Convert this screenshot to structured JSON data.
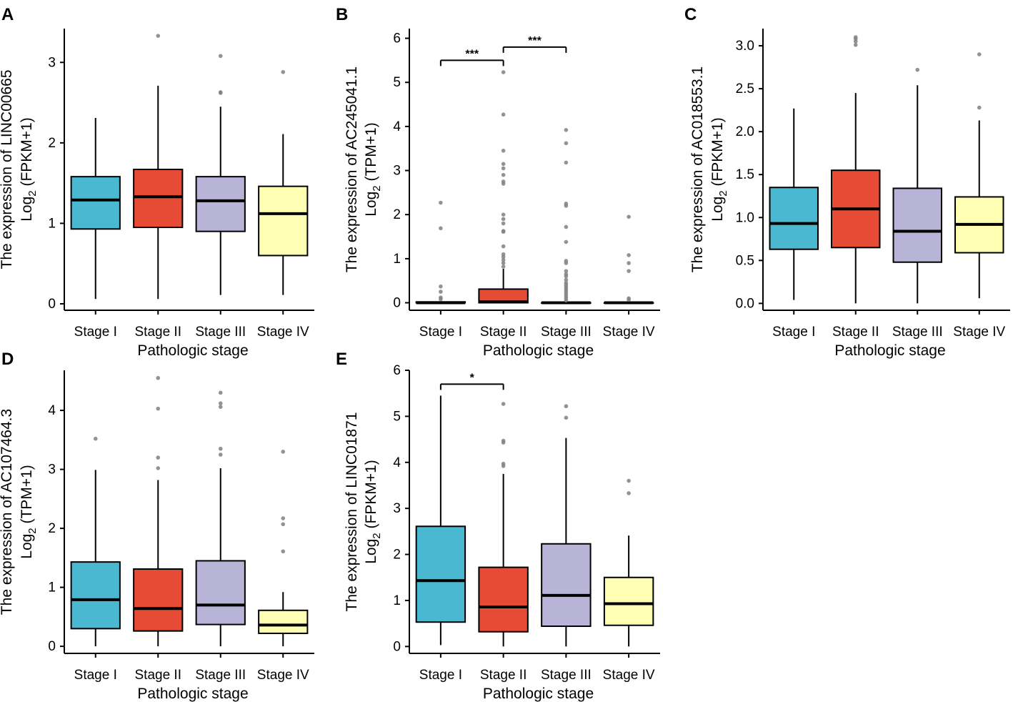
{
  "stage_colors": {
    "Stage I": "#4ab8d1",
    "Stage II": "#e64b35",
    "Stage III": "#b8b4d8",
    "Stage IV": "#ffffb3"
  },
  "outlier_color": "#808080",
  "chart_data": [
    {
      "panel": "A",
      "type": "box",
      "title": "",
      "ylabel_main": "The expression of LINC00665",
      "ylabel_sub": {
        "prefix": "Log",
        "subscript": "2",
        "suffix": " (FPKM+1)"
      },
      "xlabel": "Pathologic stage",
      "categories": [
        "Stage I",
        "Stage II",
        "Stage III",
        "Stage IV"
      ],
      "ylim": [
        -0.08,
        3.42
      ],
      "yticks": [
        0,
        1,
        2,
        3
      ],
      "ytick_labels": [
        "0",
        "1",
        "2",
        "3"
      ],
      "boxes": [
        {
          "q1": 0.93,
          "median": 1.29,
          "q3": 1.58,
          "whisker_low": 0.06,
          "whisker_high": 2.31,
          "outliers": []
        },
        {
          "q1": 0.95,
          "median": 1.33,
          "q3": 1.67,
          "whisker_low": 0.06,
          "whisker_high": 2.71,
          "outliers": [
            3.33
          ]
        },
        {
          "q1": 0.9,
          "median": 1.28,
          "q3": 1.58,
          "whisker_low": 0.11,
          "whisker_high": 2.45,
          "outliers": [
            2.62,
            2.63,
            3.08
          ]
        },
        {
          "q1": 0.6,
          "median": 1.12,
          "q3": 1.46,
          "whisker_low": 0.11,
          "whisker_high": 2.11,
          "outliers": [
            2.88
          ]
        }
      ],
      "significance": []
    },
    {
      "panel": "B",
      "type": "box",
      "title": "",
      "ylabel_main": "The expression of AC245041.1",
      "ylabel_sub": {
        "prefix": "Log",
        "subscript": "2",
        "suffix": " (TPM+1)"
      },
      "xlabel": "Pathologic stage",
      "categories": [
        "Stage I",
        "Stage II",
        "Stage III",
        "Stage IV"
      ],
      "ylim": [
        -0.17,
        6.22
      ],
      "yticks": [
        0,
        1,
        2,
        3,
        4,
        5,
        6
      ],
      "ytick_labels": [
        "0",
        "1",
        "2",
        "3",
        "4",
        "5",
        "6"
      ],
      "boxes": [
        {
          "q1": 0.0,
          "median": 0.0,
          "q3": 0.02,
          "whisker_low": 0.0,
          "whisker_high": 0.03,
          "outliers": [
            0.08,
            0.12,
            0.25,
            0.37,
            1.69,
            2.27
          ]
        },
        {
          "q1": 0.0,
          "median": 0.02,
          "q3": 0.31,
          "whisker_low": 0.0,
          "whisker_high": 0.77,
          "outliers": [
            0.82,
            0.9,
            0.97,
            1.04,
            1.1,
            1.28,
            1.61,
            1.63,
            1.8,
            1.9,
            2.0,
            2.7,
            2.75,
            2.9,
            3.05,
            3.15,
            3.45,
            4.27,
            5.23
          ]
        },
        {
          "q1": 0.0,
          "median": 0.0,
          "q3": 0.0,
          "whisker_low": 0.0,
          "whisker_high": 0.0,
          "outliers": [
            0.05,
            0.1,
            0.15,
            0.2,
            0.25,
            0.3,
            0.35,
            0.4,
            0.45,
            0.52,
            0.6,
            0.65,
            0.72,
            0.9,
            0.95,
            1.38,
            1.72,
            2.2,
            2.25,
            3.18,
            3.62,
            3.92
          ]
        },
        {
          "q1": 0.0,
          "median": 0.0,
          "q3": 0.0,
          "whisker_low": 0.0,
          "whisker_high": 0.0,
          "outliers": [
            0.07,
            0.1,
            0.72,
            0.9,
            1.08,
            1.95
          ]
        }
      ],
      "significance": [
        {
          "from": 0,
          "to": 1,
          "y": 5.5,
          "label": "***"
        },
        {
          "from": 1,
          "to": 2,
          "y": 5.8,
          "label": "***"
        }
      ]
    },
    {
      "panel": "C",
      "type": "box",
      "title": "",
      "ylabel_main": "The expression of AC018553.1",
      "ylabel_sub": {
        "prefix": "Log",
        "subscript": "2",
        "suffix": " (FPKM+1)"
      },
      "xlabel": "Pathologic stage",
      "categories": [
        "Stage I",
        "Stage II",
        "Stage III",
        "Stage IV"
      ],
      "ylim": [
        -0.08,
        3.2
      ],
      "yticks": [
        0.0,
        0.5,
        1.0,
        1.5,
        2.0,
        2.5,
        3.0
      ],
      "ytick_labels": [
        "0.0",
        "0.5",
        "1.0",
        "1.5",
        "2.0",
        "2.5",
        "3.0"
      ],
      "boxes": [
        {
          "q1": 0.63,
          "median": 0.93,
          "q3": 1.35,
          "whisker_low": 0.04,
          "whisker_high": 2.27,
          "outliers": []
        },
        {
          "q1": 0.65,
          "median": 1.1,
          "q3": 1.55,
          "whisker_low": 0.0,
          "whisker_high": 2.45,
          "outliers": [
            3.01,
            3.05,
            3.08,
            3.1
          ]
        },
        {
          "q1": 0.48,
          "median": 0.84,
          "q3": 1.34,
          "whisker_low": 0.0,
          "whisker_high": 2.54,
          "outliers": [
            2.72
          ]
        },
        {
          "q1": 0.59,
          "median": 0.92,
          "q3": 1.24,
          "whisker_low": 0.06,
          "whisker_high": 2.13,
          "outliers": [
            2.28,
            2.9
          ]
        }
      ],
      "significance": []
    },
    {
      "panel": "D",
      "type": "box",
      "title": "",
      "ylabel_main": "The expression of AC107464.3",
      "ylabel_sub": {
        "prefix": "Log",
        "subscript": "2",
        "suffix": " (TPM+1)"
      },
      "xlabel": "Pathologic stage",
      "categories": [
        "Stage I",
        "Stage II",
        "Stage III",
        "Stage IV"
      ],
      "ylim": [
        -0.12,
        4.68
      ],
      "yticks": [
        0,
        1,
        2,
        3,
        4
      ],
      "ytick_labels": [
        "0",
        "1",
        "2",
        "3",
        "4"
      ],
      "boxes": [
        {
          "q1": 0.3,
          "median": 0.79,
          "q3": 1.43,
          "whisker_low": 0.0,
          "whisker_high": 2.99,
          "outliers": [
            3.52
          ]
        },
        {
          "q1": 0.26,
          "median": 0.64,
          "q3": 1.31,
          "whisker_low": 0.0,
          "whisker_high": 2.82,
          "outliers": [
            3.02,
            3.2,
            4.03,
            4.55
          ]
        },
        {
          "q1": 0.37,
          "median": 0.7,
          "q3": 1.45,
          "whisker_low": 0.0,
          "whisker_high": 3.02,
          "outliers": [
            3.25,
            3.35,
            4.06,
            4.12,
            4.3
          ]
        },
        {
          "q1": 0.22,
          "median": 0.36,
          "q3": 0.61,
          "whisker_low": 0.0,
          "whisker_high": 0.92,
          "outliers": [
            1.61,
            2.07,
            2.17,
            3.3
          ]
        }
      ],
      "significance": []
    },
    {
      "panel": "E",
      "type": "box",
      "title": "",
      "ylabel_main": "The expression of LINC01871",
      "ylabel_sub": {
        "prefix": "Log",
        "subscript": "2",
        "suffix": " (FPKM+1)"
      },
      "xlabel": "Pathologic stage",
      "categories": [
        "Stage I",
        "Stage II",
        "Stage III",
        "Stage IV"
      ],
      "ylim": [
        -0.15,
        6.0
      ],
      "yticks": [
        0,
        1,
        2,
        3,
        4,
        5,
        6
      ],
      "ytick_labels": [
        "0",
        "1",
        "2",
        "3",
        "4",
        "5",
        "6"
      ],
      "boxes": [
        {
          "q1": 0.53,
          "median": 1.43,
          "q3": 2.61,
          "whisker_low": 0.03,
          "whisker_high": 5.45,
          "outliers": []
        },
        {
          "q1": 0.32,
          "median": 0.86,
          "q3": 1.72,
          "whisker_low": 0.0,
          "whisker_high": 3.75,
          "outliers": [
            3.92,
            3.97,
            4.43,
            4.47,
            5.27
          ]
        },
        {
          "q1": 0.44,
          "median": 1.11,
          "q3": 2.23,
          "whisker_low": 0.0,
          "whisker_high": 4.53,
          "outliers": [
            4.97,
            5.22
          ]
        },
        {
          "q1": 0.46,
          "median": 0.93,
          "q3": 1.5,
          "whisker_low": 0.0,
          "whisker_high": 2.41,
          "outliers": [
            3.33,
            3.6
          ]
        }
      ],
      "significance": [
        {
          "from": 0,
          "to": 1,
          "y": 5.7,
          "label": "*"
        }
      ]
    }
  ]
}
